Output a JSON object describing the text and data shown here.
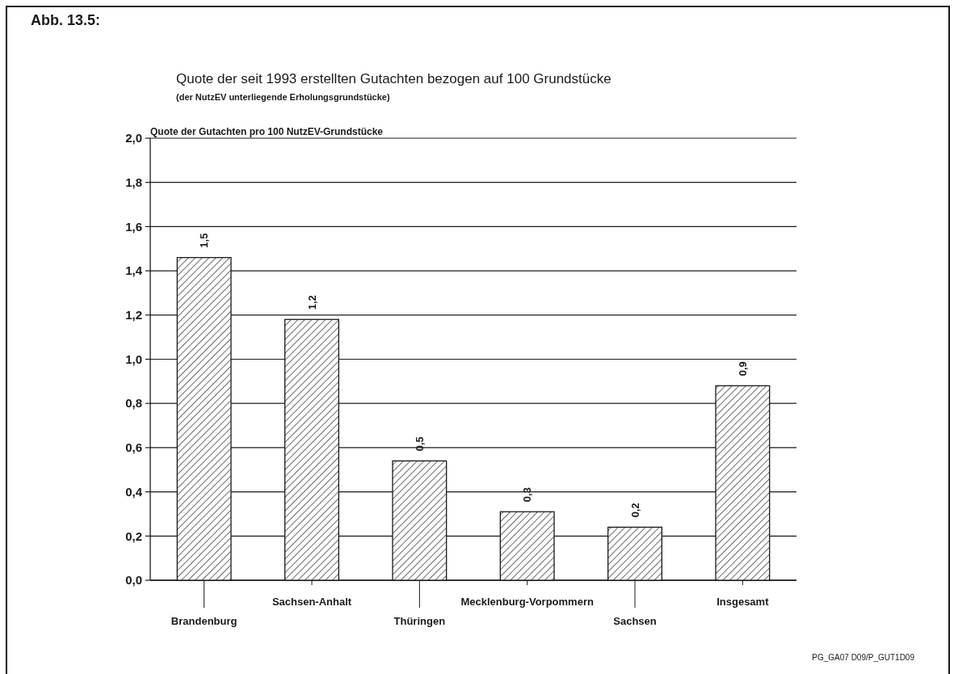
{
  "chart_data": {
    "type": "bar",
    "title": "Quote der seit 1993 erstellten Gutachten bezogen auf 100 Grundstücke",
    "subtitle": "(der NutzEV unterliegende Erholungsgrundstücke)",
    "ylabel": "Quote der Gutachten pro 100 NutzEV-Grundstücke",
    "annotations": [
      "Abb. 13.5:",
      "PG_GA07 D09/P_GUT1D09"
    ],
    "categories": [
      "Brandenburg",
      "Sachsen-Anhalt",
      "Thüringen",
      "Mecklenburg-Vorpommern",
      "Sachsen",
      "Insgesamt"
    ],
    "values": [
      1.46,
      1.18,
      0.54,
      0.31,
      0.24,
      0.88
    ],
    "value_labels": [
      "1,5",
      "1,2",
      "0,5",
      "0,3",
      "0,2",
      "0,9"
    ],
    "color": "#1a1a1a",
    "ylim": [
      0,
      2
    ],
    "yticks": [
      {
        "value": 0,
        "label": "0,0"
      },
      {
        "value": 0.2,
        "label": "0,2"
      },
      {
        "value": 0.4,
        "label": "0,4"
      },
      {
        "value": 0.6,
        "label": "0,6"
      },
      {
        "value": 0.8,
        "label": "0,8"
      },
      {
        "value": 1,
        "label": "1,0"
      },
      {
        "value": 1.2,
        "label": "1,2"
      },
      {
        "value": 1.4,
        "label": "1,4"
      },
      {
        "value": 1.6,
        "label": "1,6"
      },
      {
        "value": 1.8,
        "label": "1,8"
      },
      {
        "value": 2,
        "label": "2,0"
      }
    ],
    "grid": "y"
  }
}
